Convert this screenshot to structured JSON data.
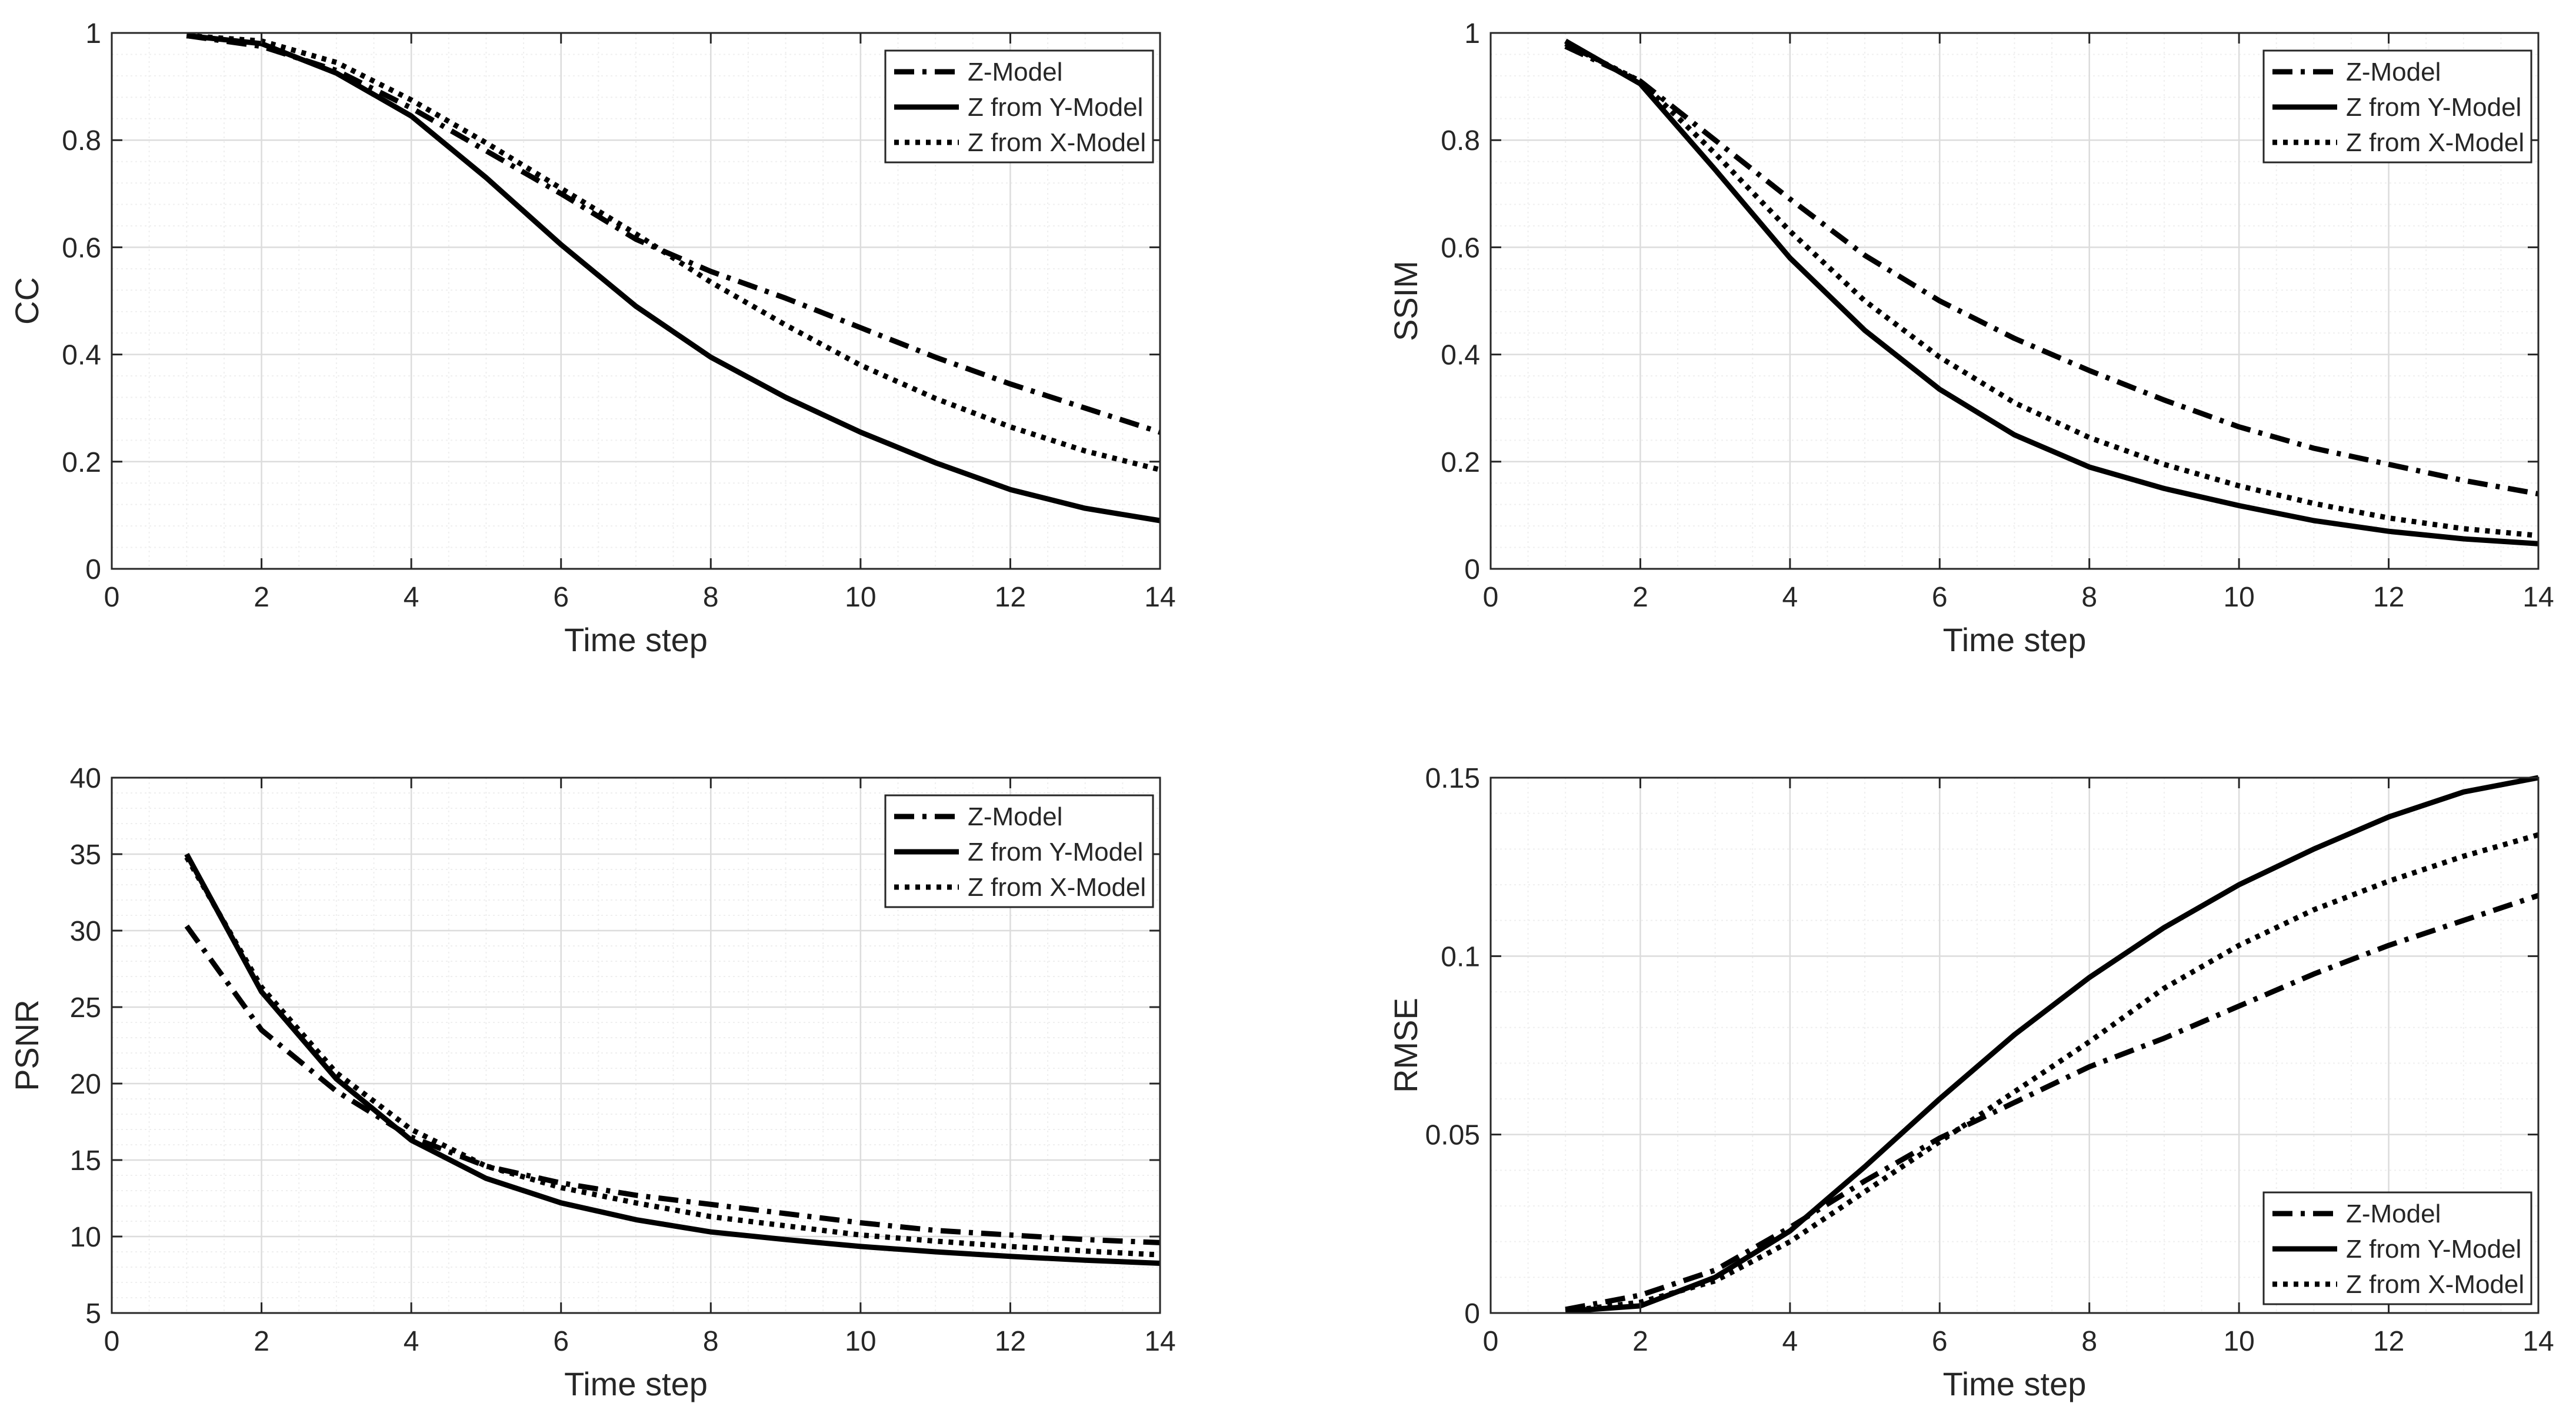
{
  "colors": {
    "line": "#000000",
    "axis": "#262626",
    "grid_major": "#dcdcdc",
    "grid_minor": "#efefef",
    "background": "#ffffff"
  },
  "chart_data": [
    {
      "id": "cc",
      "type": "line",
      "title": "",
      "xlabel": "Time step",
      "ylabel": "CC",
      "xlim": [
        0,
        14
      ],
      "ylim": [
        0,
        1
      ],
      "xticks": [
        "0",
        "2",
        "4",
        "6",
        "8",
        "10",
        "12",
        "14"
      ],
      "yticks": [
        "0",
        "0.2",
        "0.4",
        "0.6",
        "0.8",
        "1"
      ],
      "grid": true,
      "legend_position": "top-right",
      "x": [
        1,
        2,
        3,
        4,
        5,
        6,
        7,
        8,
        9,
        10,
        11,
        12,
        13,
        14
      ],
      "series": [
        {
          "name": "Z-Model",
          "style": "dashdot",
          "values": [
            0.995,
            0.975,
            0.93,
            0.86,
            0.78,
            0.7,
            0.615,
            0.555,
            0.505,
            0.45,
            0.395,
            0.345,
            0.3,
            0.255
          ]
        },
        {
          "name": "Z from Y-Model",
          "style": "solid",
          "values": [
            0.995,
            0.98,
            0.925,
            0.845,
            0.73,
            0.605,
            0.49,
            0.395,
            0.32,
            0.255,
            0.198,
            0.148,
            0.113,
            0.09
          ]
        },
        {
          "name": "Z from X-Model",
          "style": "dotted",
          "values": [
            0.995,
            0.985,
            0.945,
            0.875,
            0.795,
            0.71,
            0.625,
            0.535,
            0.455,
            0.38,
            0.318,
            0.265,
            0.22,
            0.185
          ]
        }
      ]
    },
    {
      "id": "ssim",
      "type": "line",
      "title": "",
      "xlabel": "Time step",
      "ylabel": "SSIM",
      "xlim": [
        0,
        14
      ],
      "ylim": [
        0,
        1
      ],
      "xticks": [
        "0",
        "2",
        "4",
        "6",
        "8",
        "10",
        "12",
        "14"
      ],
      "yticks": [
        "0",
        "0.2",
        "0.4",
        "0.6",
        "0.8",
        "1"
      ],
      "grid": true,
      "legend_position": "top-right",
      "x": [
        1,
        2,
        3,
        4,
        5,
        6,
        7,
        8,
        9,
        10,
        11,
        12,
        13,
        14
      ],
      "series": [
        {
          "name": "Z-Model",
          "style": "dashdot",
          "values": [
            0.975,
            0.91,
            0.8,
            0.69,
            0.585,
            0.5,
            0.43,
            0.37,
            0.315,
            0.265,
            0.225,
            0.195,
            0.165,
            0.14
          ]
        },
        {
          "name": "Z from Y-Model",
          "style": "solid",
          "values": [
            0.985,
            0.905,
            0.745,
            0.58,
            0.445,
            0.335,
            0.25,
            0.19,
            0.15,
            0.118,
            0.09,
            0.07,
            0.056,
            0.047
          ]
        },
        {
          "name": "Z from X-Model",
          "style": "dotted",
          "values": [
            0.98,
            0.91,
            0.775,
            0.63,
            0.5,
            0.395,
            0.31,
            0.245,
            0.195,
            0.155,
            0.122,
            0.095,
            0.075,
            0.062
          ]
        }
      ]
    },
    {
      "id": "psnr",
      "type": "line",
      "title": "",
      "xlabel": "Time step",
      "ylabel": "PSNR",
      "xlim": [
        0,
        14
      ],
      "ylim": [
        5,
        40
      ],
      "xticks": [
        "0",
        "2",
        "4",
        "6",
        "8",
        "10",
        "12",
        "14"
      ],
      "yticks": [
        "5",
        "10",
        "15",
        "20",
        "25",
        "30",
        "35",
        "40"
      ],
      "grid": true,
      "legend_position": "top-right",
      "x": [
        1,
        2,
        3,
        4,
        5,
        6,
        7,
        8,
        9,
        10,
        11,
        12,
        13,
        14
      ],
      "series": [
        {
          "name": "Z-Model",
          "style": "dashdot",
          "values": [
            30.3,
            23.5,
            19.5,
            16.5,
            14.6,
            13.5,
            12.7,
            12.1,
            11.5,
            10.9,
            10.4,
            10.1,
            9.8,
            9.6
          ]
        },
        {
          "name": "Z from Y-Model",
          "style": "solid",
          "values": [
            35,
            26,
            20.3,
            16.3,
            13.8,
            12.2,
            11.1,
            10.3,
            9.8,
            9.35,
            9.0,
            8.7,
            8.45,
            8.25
          ]
        },
        {
          "name": "Z from X-Model",
          "style": "dotted",
          "values": [
            34.8,
            26.3,
            20.7,
            17,
            14.6,
            13.2,
            12.2,
            11.3,
            10.7,
            10.1,
            9.7,
            9.35,
            9.05,
            8.8
          ]
        }
      ]
    },
    {
      "id": "rmse",
      "type": "line",
      "title": "",
      "xlabel": "Time step",
      "ylabel": "RMSE",
      "xlim": [
        0,
        14
      ],
      "ylim": [
        0,
        0.15
      ],
      "xticks": [
        "0",
        "2",
        "4",
        "6",
        "8",
        "10",
        "12",
        "14"
      ],
      "yticks": [
        "0",
        "0.05",
        "0.1",
        "0.15"
      ],
      "grid": true,
      "legend_position": "bottom-right",
      "x": [
        1,
        2,
        3,
        4,
        5,
        6,
        7,
        8,
        9,
        10,
        11,
        12,
        13,
        14
      ],
      "series": [
        {
          "name": "Z-Model",
          "style": "dashdot",
          "values": [
            0.001,
            0.005,
            0.012,
            0.024,
            0.037,
            0.049,
            0.059,
            0.069,
            0.077,
            0.086,
            0.095,
            0.103,
            0.11,
            0.117
          ]
        },
        {
          "name": "Z from Y-Model",
          "style": "solid",
          "values": [
            0.0005,
            0.002,
            0.01,
            0.023,
            0.041,
            0.06,
            0.078,
            0.094,
            0.108,
            0.12,
            0.13,
            0.139,
            0.146,
            0.15
          ]
        },
        {
          "name": "Z from X-Model",
          "style": "dotted",
          "values": [
            0.0005,
            0.003,
            0.009,
            0.02,
            0.034,
            0.048,
            0.062,
            0.076,
            0.091,
            0.103,
            0.113,
            0.121,
            0.128,
            0.134
          ]
        }
      ]
    }
  ]
}
